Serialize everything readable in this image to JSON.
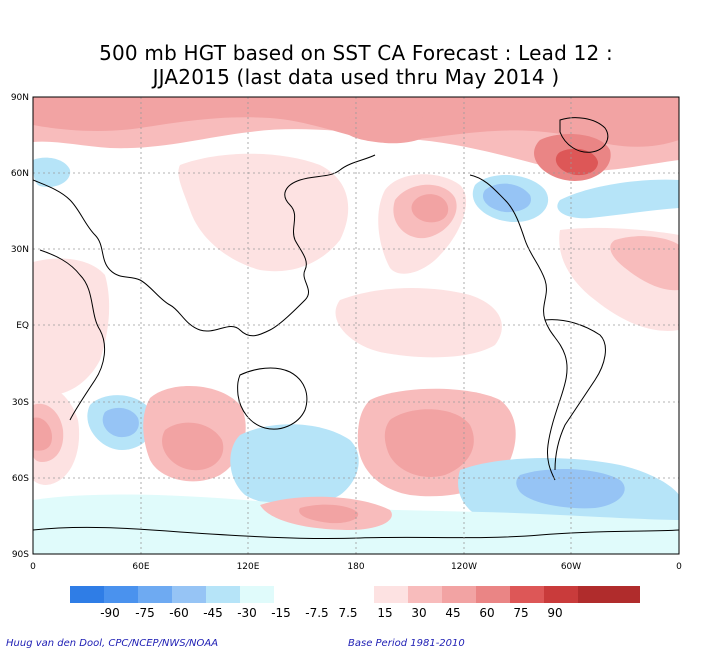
{
  "title": {
    "line1": "500 mb HGT based on SST CA Forecast : Lead 12 :",
    "line2": "JJA2015 (last data used thru May 2014 )"
  },
  "map": {
    "lat_labels": [
      "90N",
      "60N",
      "30N",
      "EQ",
      "30S",
      "60S",
      "90S"
    ],
    "lon_labels": [
      "0",
      "60E",
      "120E",
      "180",
      "120W",
      "60W",
      "0"
    ]
  },
  "colorbar": {
    "colors": [
      "#2f7de6",
      "#4a92ee",
      "#6eaaf2",
      "#96c4f5",
      "#b6e4f8",
      "#e0fbfb",
      "#ffffff",
      "#fde2e2",
      "#f8bcbc",
      "#f2a3a3",
      "#ea8585",
      "#dd5757",
      "#c93b3b",
      "#b02c2c"
    ],
    "labels": [
      "-90",
      "-75",
      "-60",
      "-45",
      "-30",
      "-15",
      "-7.5",
      "7.5",
      "15",
      "30",
      "45",
      "60",
      "75",
      "90"
    ]
  },
  "credits": {
    "left": "Huug van den Dool, CPC/NCEP/NWS/NOAA",
    "right": "Base Period 1981-2010"
  }
}
